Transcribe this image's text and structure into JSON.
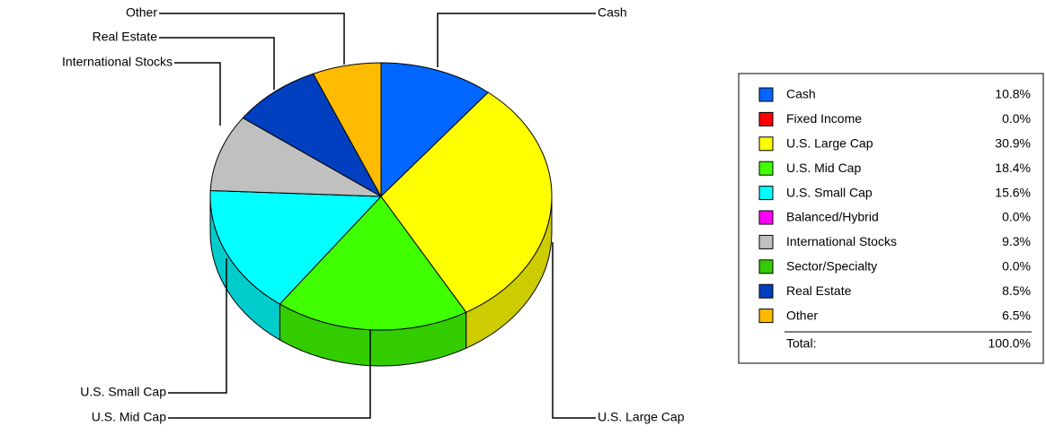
{
  "chart_data": {
    "type": "pie",
    "categories": [
      "Cash",
      "Fixed Income",
      "U.S. Large Cap",
      "U.S. Mid Cap",
      "U.S. Small Cap",
      "Balanced/Hybrid",
      "International Stocks",
      "Sector/Specialty",
      "Real Estate",
      "Other"
    ],
    "values": [
      10.8,
      0.0,
      30.9,
      18.4,
      15.6,
      0.0,
      9.3,
      0.0,
      8.5,
      6.5
    ],
    "value_labels": [
      "10.8%",
      "0.0%",
      "30.9%",
      "18.4%",
      "15.6%",
      "0.0%",
      "9.3%",
      "0.0%",
      "8.5%",
      "6.5%"
    ],
    "colors": [
      "#0066ff",
      "#ff0000",
      "#ffff00",
      "#40ff00",
      "#00ffff",
      "#ff00ff",
      "#c0c0c0",
      "#33cc00",
      "#0040c0",
      "#ffbb00"
    ],
    "total": {
      "label": "Total:",
      "value": 100.0,
      "value_label": "100.0%"
    }
  }
}
